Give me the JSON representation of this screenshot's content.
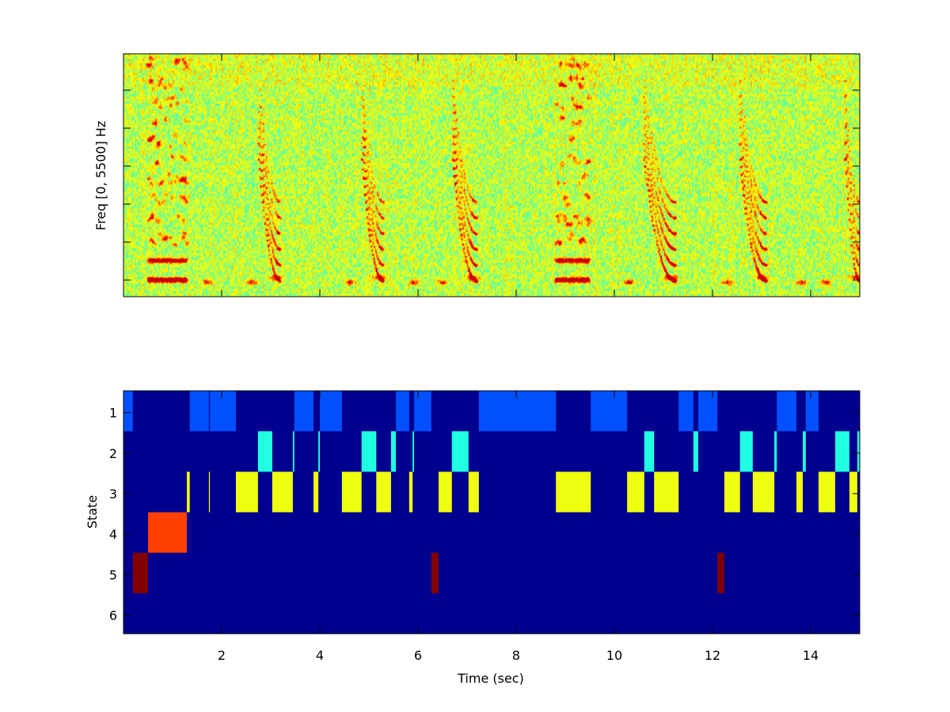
{
  "chart_data": [
    {
      "type": "heatmap",
      "title": "",
      "ylabel": "Freq [0, 5500] Hz",
      "xlabel": "",
      "xlim": [
        0,
        15
      ],
      "ylim": [
        0,
        5500
      ],
      "x_ticks": [
        2,
        4,
        6,
        8,
        10,
        12,
        14
      ],
      "y_ticks_count": 6,
      "tick_labels_shown": false,
      "colormap": "jet",
      "calls_sec": {
        "broadband": [
          [
            0.5,
            1.3
          ],
          [
            8.8,
            9.5
          ]
        ],
        "downsweep": [
          [
            2.75,
            3.2
          ],
          [
            4.85,
            5.3
          ],
          [
            6.7,
            7.2
          ],
          [
            10.6,
            11.25
          ],
          [
            12.55,
            13.1
          ],
          [
            14.7,
            15.0
          ]
        ],
        "low_blobs": [
          1.7,
          2.6,
          4.6,
          5.9,
          6.5,
          10.3,
          12.3,
          13.8,
          14.3
        ]
      }
    },
    {
      "type": "heatmap",
      "title": "",
      "xlabel": "Time (sec)",
      "ylabel": "State",
      "xlim": [
        0,
        15
      ],
      "ylim": [
        0.5,
        6.5
      ],
      "x_ticks": [
        "2",
        "4",
        "6",
        "8",
        "10",
        "12",
        "14"
      ],
      "y_ticks": [
        "1",
        "2",
        "3",
        "4",
        "5",
        "6"
      ],
      "background_color": "#00008f",
      "state_colors": {
        "1": "#0050ff",
        "2": "#20ffe0",
        "3": "#f0ff10",
        "4": "#ff4000",
        "5": "#800000",
        "6": "#00008f"
      },
      "segments": [
        {
          "state": 1,
          "start": 0.0,
          "end": 0.19
        },
        {
          "state": 5,
          "start": 0.19,
          "end": 0.5
        },
        {
          "state": 4,
          "start": 0.5,
          "end": 1.29
        },
        {
          "state": 3,
          "start": 1.29,
          "end": 1.35
        },
        {
          "state": 1,
          "start": 1.35,
          "end": 1.74
        },
        {
          "state": 3,
          "start": 1.74,
          "end": 1.76
        },
        {
          "state": 1,
          "start": 1.76,
          "end": 2.29
        },
        {
          "state": 3,
          "start": 2.29,
          "end": 2.74
        },
        {
          "state": 2,
          "start": 2.74,
          "end": 3.03
        },
        {
          "state": 3,
          "start": 3.03,
          "end": 3.45
        },
        {
          "state": 2,
          "start": 3.45,
          "end": 3.48
        },
        {
          "state": 1,
          "start": 3.48,
          "end": 3.87
        },
        {
          "state": 3,
          "start": 3.87,
          "end": 3.97
        },
        {
          "state": 2,
          "start": 3.97,
          "end": 4.0
        },
        {
          "state": 1,
          "start": 4.0,
          "end": 4.45
        },
        {
          "state": 3,
          "start": 4.45,
          "end": 4.85
        },
        {
          "state": 2,
          "start": 4.85,
          "end": 5.15
        },
        {
          "state": 3,
          "start": 5.15,
          "end": 5.45
        },
        {
          "state": 2,
          "start": 5.45,
          "end": 5.55
        },
        {
          "state": 1,
          "start": 5.55,
          "end": 5.82
        },
        {
          "state": 3,
          "start": 5.82,
          "end": 5.89
        },
        {
          "state": 2,
          "start": 5.89,
          "end": 5.92
        },
        {
          "state": 1,
          "start": 5.92,
          "end": 6.27
        },
        {
          "state": 5,
          "start": 6.27,
          "end": 6.42
        },
        {
          "state": 3,
          "start": 6.42,
          "end": 6.69
        },
        {
          "state": 2,
          "start": 6.69,
          "end": 7.03
        },
        {
          "state": 3,
          "start": 7.03,
          "end": 7.24
        },
        {
          "state": 1,
          "start": 7.24,
          "end": 8.81
        },
        {
          "state": 3,
          "start": 8.81,
          "end": 9.52
        },
        {
          "state": 1,
          "start": 9.52,
          "end": 10.26
        },
        {
          "state": 3,
          "start": 10.26,
          "end": 10.61
        },
        {
          "state": 2,
          "start": 10.61,
          "end": 10.81
        },
        {
          "state": 3,
          "start": 10.81,
          "end": 11.31
        },
        {
          "state": 1,
          "start": 11.31,
          "end": 11.61
        },
        {
          "state": 2,
          "start": 11.61,
          "end": 11.71
        },
        {
          "state": 1,
          "start": 11.71,
          "end": 12.1
        },
        {
          "state": 5,
          "start": 12.1,
          "end": 12.24
        },
        {
          "state": 3,
          "start": 12.24,
          "end": 12.56
        },
        {
          "state": 2,
          "start": 12.56,
          "end": 12.82
        },
        {
          "state": 3,
          "start": 12.82,
          "end": 13.26
        },
        {
          "state": 2,
          "start": 13.26,
          "end": 13.31
        },
        {
          "state": 1,
          "start": 13.31,
          "end": 13.71
        },
        {
          "state": 3,
          "start": 13.71,
          "end": 13.84
        },
        {
          "state": 2,
          "start": 13.84,
          "end": 13.9
        },
        {
          "state": 1,
          "start": 13.9,
          "end": 14.16
        },
        {
          "state": 3,
          "start": 14.16,
          "end": 14.5
        },
        {
          "state": 2,
          "start": 14.5,
          "end": 14.79
        },
        {
          "state": 3,
          "start": 14.79,
          "end": 14.95
        },
        {
          "state": 2,
          "start": 14.95,
          "end": 15.0
        }
      ]
    }
  ]
}
